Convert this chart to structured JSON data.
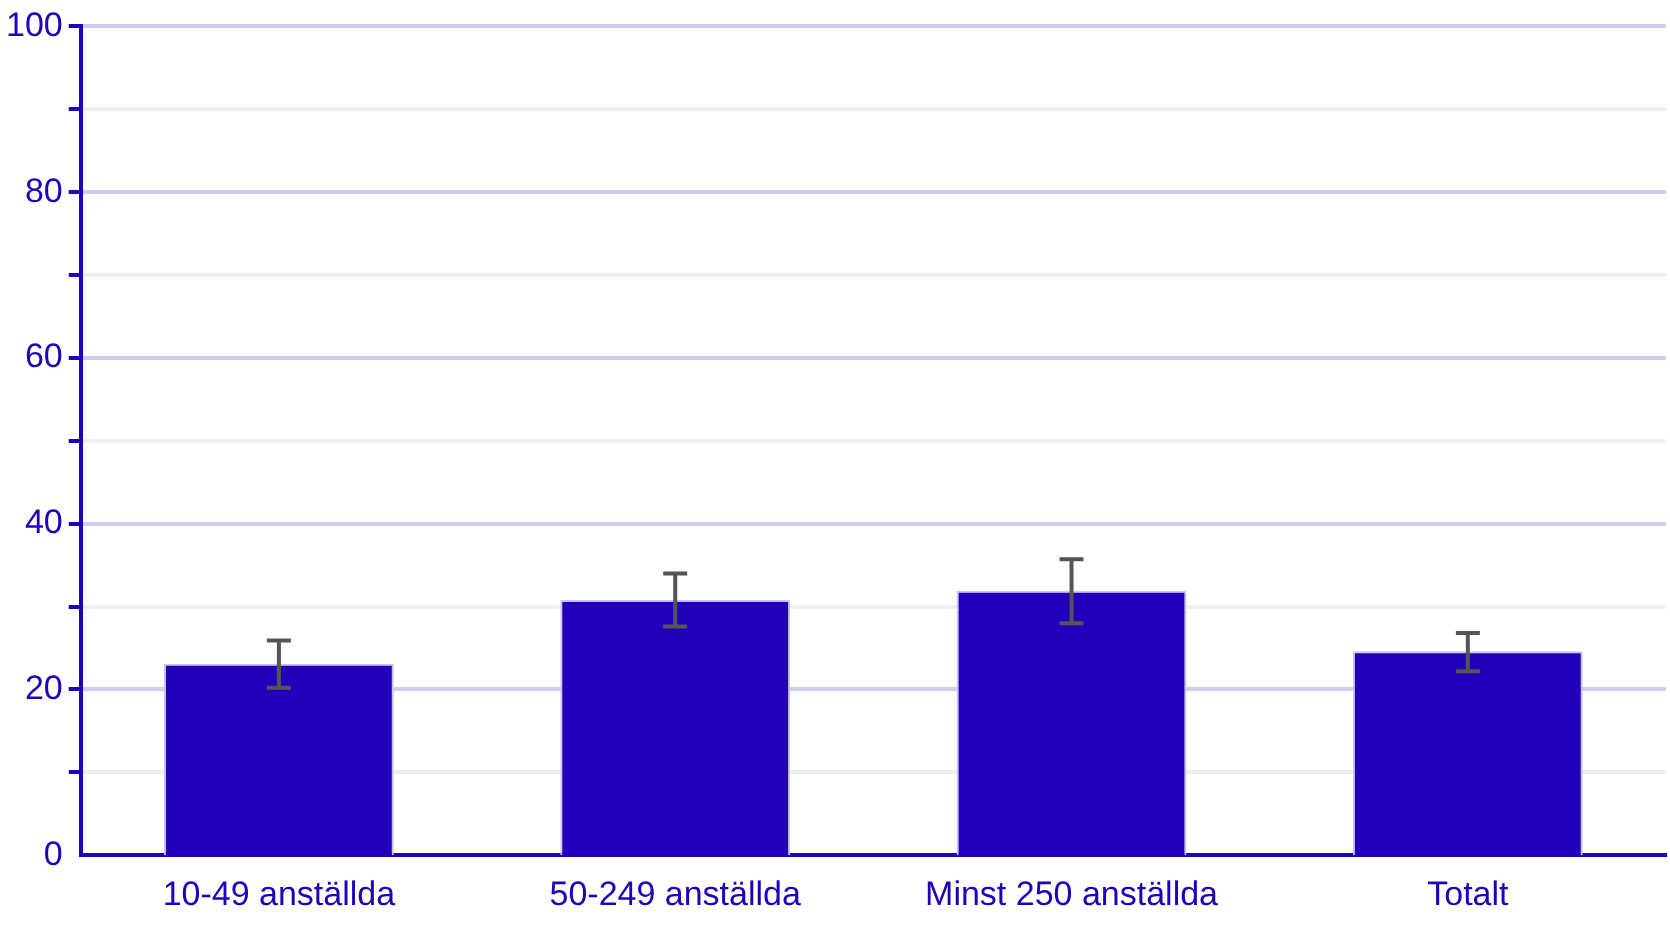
{
  "chart_data": {
    "type": "bar",
    "categories": [
      "10-49 anställda",
      "50-249 anställda",
      "Minst 250 anställda",
      "Totalt"
    ],
    "values": [
      23.1,
      30.8,
      31.9,
      24.6
    ],
    "errors": [
      [
        20.2,
        25.9
      ],
      [
        27.6,
        34.0
      ],
      [
        28.0,
        35.7
      ],
      [
        22.2,
        26.8
      ]
    ],
    "color": "#2200bb",
    "ylim": [
      0,
      100
    ],
    "yticks": [
      0,
      {
        "value": 10,
        "label": null
      },
      20,
      {
        "value": 30,
        "label": null
      },
      40,
      {
        "value": 50,
        "label": null
      },
      60,
      {
        "value": 70,
        "label": null
      },
      80,
      {
        "value": 90,
        "label": null
      },
      100
    ],
    "grid": "y"
  }
}
